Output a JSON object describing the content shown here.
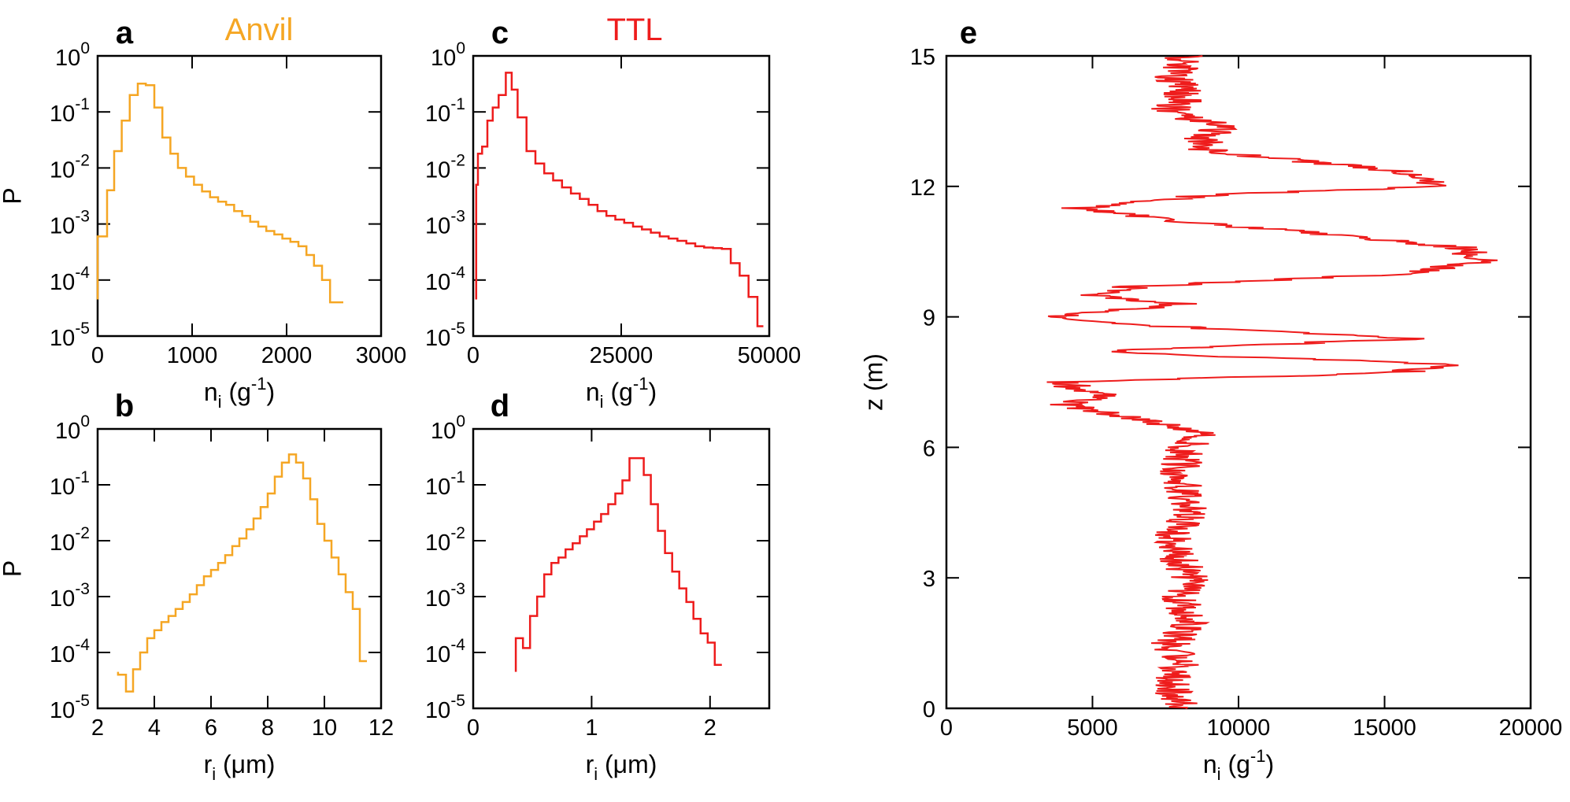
{
  "colors": {
    "anvil": "#f5a623",
    "ttl": "#ee1c1c",
    "axis": "#000000"
  },
  "chart_data": [
    {
      "id": "a",
      "panel_label": "a",
      "title": "Anvil",
      "title_color": "anvil",
      "type": "line",
      "style": "step",
      "log_y": true,
      "xlim": [
        0,
        3000
      ],
      "ylim": [
        1e-05,
        1
      ],
      "x_ticks": [
        0,
        1000,
        2000,
        3000
      ],
      "x_tick_labels": [
        "0",
        "1000",
        "2000",
        "3000"
      ],
      "y_tick_exps": [
        -5,
        -4,
        -3,
        -2,
        -1,
        0
      ],
      "xlabel": {
        "base": "n",
        "sub": "i",
        "unit_open": " (g",
        "sup": "-1",
        "unit_close": ")"
      },
      "ylabel": "P",
      "grid": false,
      "series": [
        {
          "color": "anvil",
          "edges": [
            0,
            100,
            175,
            255,
            340,
            425,
            510,
            600,
            685,
            770,
            850,
            935,
            1020,
            1105,
            1190,
            1275,
            1360,
            1445,
            1530,
            1615,
            1700,
            1785,
            1870,
            1955,
            2040,
            2125,
            2210,
            2290,
            2375,
            2460,
            2600
          ],
          "values": [
            0.0006,
            0.004,
            0.02,
            0.07,
            0.2,
            0.32,
            0.3,
            0.12,
            0.035,
            0.018,
            0.01,
            0.007,
            0.005,
            0.0038,
            0.003,
            0.0025,
            0.0022,
            0.0017,
            0.0014,
            0.0011,
            0.0009,
            0.00075,
            0.00065,
            0.00055,
            0.00048,
            0.0004,
            0.00028,
            0.00018,
            0.0001,
            4e-05
          ]
        }
      ]
    },
    {
      "id": "b",
      "panel_label": "b",
      "type": "line",
      "style": "step",
      "log_y": true,
      "xlim": [
        2,
        12
      ],
      "ylim": [
        1e-05,
        1
      ],
      "x_ticks": [
        2,
        4,
        6,
        8,
        10,
        12
      ],
      "x_tick_labels": [
        "2",
        "4",
        "6",
        "8",
        "10",
        "12"
      ],
      "y_tick_exps": [
        -5,
        -4,
        -3,
        -2,
        -1,
        0
      ],
      "xlabel": {
        "base": "r",
        "sub": "i",
        "unit_open": " (μm)",
        "sup": "",
        "unit_close": ""
      },
      "ylabel": "P",
      "grid": false,
      "series": [
        {
          "color": "anvil",
          "edges": [
            2.72,
            3.0,
            3.25,
            3.5,
            3.75,
            4.0,
            4.25,
            4.5,
            4.75,
            5.0,
            5.25,
            5.5,
            5.75,
            6.0,
            6.25,
            6.5,
            6.75,
            7.0,
            7.25,
            7.5,
            7.75,
            8.0,
            8.25,
            8.5,
            8.75,
            9.0,
            9.25,
            9.5,
            9.75,
            10.0,
            10.25,
            10.5,
            10.75,
            11.0,
            11.25,
            11.5
          ],
          "values": [
            4e-05,
            2e-05,
            5e-05,
            0.0001,
            0.00018,
            0.00025,
            0.00035,
            0.00045,
            0.0006,
            0.0008,
            0.0011,
            0.0016,
            0.0023,
            0.003,
            0.004,
            0.0055,
            0.008,
            0.011,
            0.016,
            0.025,
            0.04,
            0.07,
            0.14,
            0.25,
            0.35,
            0.25,
            0.13,
            0.055,
            0.02,
            0.01,
            0.005,
            0.0025,
            0.0012,
            0.0006,
            7e-05
          ]
        }
      ]
    },
    {
      "id": "c",
      "panel_label": "c",
      "title": "TTL",
      "title_color": "ttl",
      "type": "line",
      "style": "step",
      "log_y": true,
      "xlim": [
        0,
        50000
      ],
      "ylim": [
        1e-05,
        1
      ],
      "x_ticks": [
        0,
        25000,
        50000
      ],
      "x_tick_labels": [
        "0",
        "25000",
        "50000"
      ],
      "y_tick_exps": [
        -5,
        -4,
        -3,
        -2,
        -1,
        0
      ],
      "xlabel": {
        "base": "n",
        "sub": "i",
        "unit_open": " (g",
        "sup": "-1",
        "unit_close": ")"
      },
      "ylabel": "",
      "grid": false,
      "series": [
        {
          "color": "ttl",
          "edges": [
            500,
            800,
            1500,
            2400,
            3300,
            4300,
            5500,
            6500,
            7500,
            9000,
            10500,
            12000,
            13500,
            15000,
            16500,
            18000,
            19500,
            21000,
            22500,
            24000,
            25500,
            27000,
            28500,
            30000,
            31500,
            33000,
            34500,
            36000,
            37500,
            39000,
            40500,
            42000,
            43500,
            45000,
            46500,
            48000,
            49000
          ],
          "values": [
            0.005,
            0.018,
            0.024,
            0.07,
            0.12,
            0.2,
            0.5,
            0.25,
            0.08,
            0.02,
            0.012,
            0.008,
            0.006,
            0.0045,
            0.0035,
            0.0028,
            0.0022,
            0.0017,
            0.0014,
            0.0012,
            0.00105,
            0.0009,
            0.0008,
            0.0007,
            0.0006,
            0.00055,
            0.0005,
            0.00045,
            0.0004,
            0.00038,
            0.00037,
            0.00036,
            0.0002,
            0.00012,
            5e-05,
            1.5e-05
          ]
        }
      ]
    },
    {
      "id": "d",
      "panel_label": "d",
      "type": "line",
      "style": "step",
      "log_y": true,
      "xlim": [
        0,
        2.5
      ],
      "ylim": [
        1e-05,
        1
      ],
      "x_ticks": [
        0,
        1,
        2
      ],
      "x_tick_labels": [
        "0",
        "1",
        "2"
      ],
      "y_tick_exps": [
        -5,
        -4,
        -3,
        -2,
        -1,
        0
      ],
      "xlabel": {
        "base": "r",
        "sub": "i",
        "unit_open": " (μm)",
        "sup": "",
        "unit_close": ""
      },
      "ylabel": "",
      "grid": false,
      "series": [
        {
          "color": "ttl",
          "edges": [
            0.36,
            0.42,
            0.48,
            0.54,
            0.6,
            0.66,
            0.72,
            0.78,
            0.84,
            0.9,
            0.96,
            1.02,
            1.08,
            1.14,
            1.2,
            1.26,
            1.32,
            1.38,
            1.44,
            1.5,
            1.56,
            1.62,
            1.68,
            1.74,
            1.8,
            1.86,
            1.92,
            1.98,
            2.04,
            2.1
          ],
          "values": [
            0.00018,
            0.00012,
            0.00045,
            0.001,
            0.0025,
            0.004,
            0.005,
            0.007,
            0.009,
            0.012,
            0.016,
            0.022,
            0.03,
            0.045,
            0.07,
            0.12,
            0.3,
            0.3,
            0.15,
            0.045,
            0.015,
            0.006,
            0.0028,
            0.0014,
            0.0008,
            0.0004,
            0.00022,
            0.00015,
            6e-05
          ]
        }
      ]
    },
    {
      "id": "e",
      "panel_label": "e",
      "type": "line",
      "style": "profile",
      "log_y": false,
      "xlim": [
        0,
        20000
      ],
      "ylim": [
        0,
        15
      ],
      "x_ticks": [
        0,
        5000,
        10000,
        15000,
        20000
      ],
      "x_tick_labels": [
        "0",
        "5000",
        "10000",
        "15000",
        "20000"
      ],
      "y_ticks": [
        0,
        3,
        6,
        9,
        12,
        15
      ],
      "y_tick_labels": [
        "0",
        "3",
        "6",
        "9",
        "12",
        "15"
      ],
      "xlabel": {
        "base": "n",
        "sub": "i",
        "unit_open": " (g",
        "sup": "-1",
        "unit_close": ")"
      },
      "ylabel": "z (m)",
      "grid": false,
      "series": [
        {
          "color": "ttl",
          "z": [
            0,
            0.5,
            1,
            1.5,
            2,
            2.5,
            3,
            3.5,
            4,
            4.5,
            5,
            5.5,
            6,
            6.3,
            6.6,
            6.8,
            7.0,
            7.2,
            7.5,
            7.7,
            7.9,
            8.2,
            8.5,
            8.8,
            9.0,
            9.3,
            9.5,
            9.7,
            10.0,
            10.3,
            10.6,
            10.9,
            11.2,
            11.5,
            11.8,
            12.0,
            12.3,
            12.6,
            12.8,
            13.1,
            13.4,
            13.7,
            14.0,
            14.5,
            15.0
          ],
          "n": [
            8200,
            7600,
            8000,
            7700,
            8500,
            8000,
            8300,
            7900,
            7800,
            8300,
            8100,
            8000,
            8200,
            8800,
            7000,
            5600,
            4000,
            5500,
            3800,
            15000,
            17800,
            5000,
            16000,
            7000,
            3800,
            8000,
            4800,
            6500,
            16000,
            18500,
            17500,
            13000,
            8000,
            4500,
            9000,
            17000,
            16000,
            12000,
            9000,
            8800,
            9500,
            7500,
            8200,
            7800,
            8200
          ]
        }
      ]
    }
  ]
}
